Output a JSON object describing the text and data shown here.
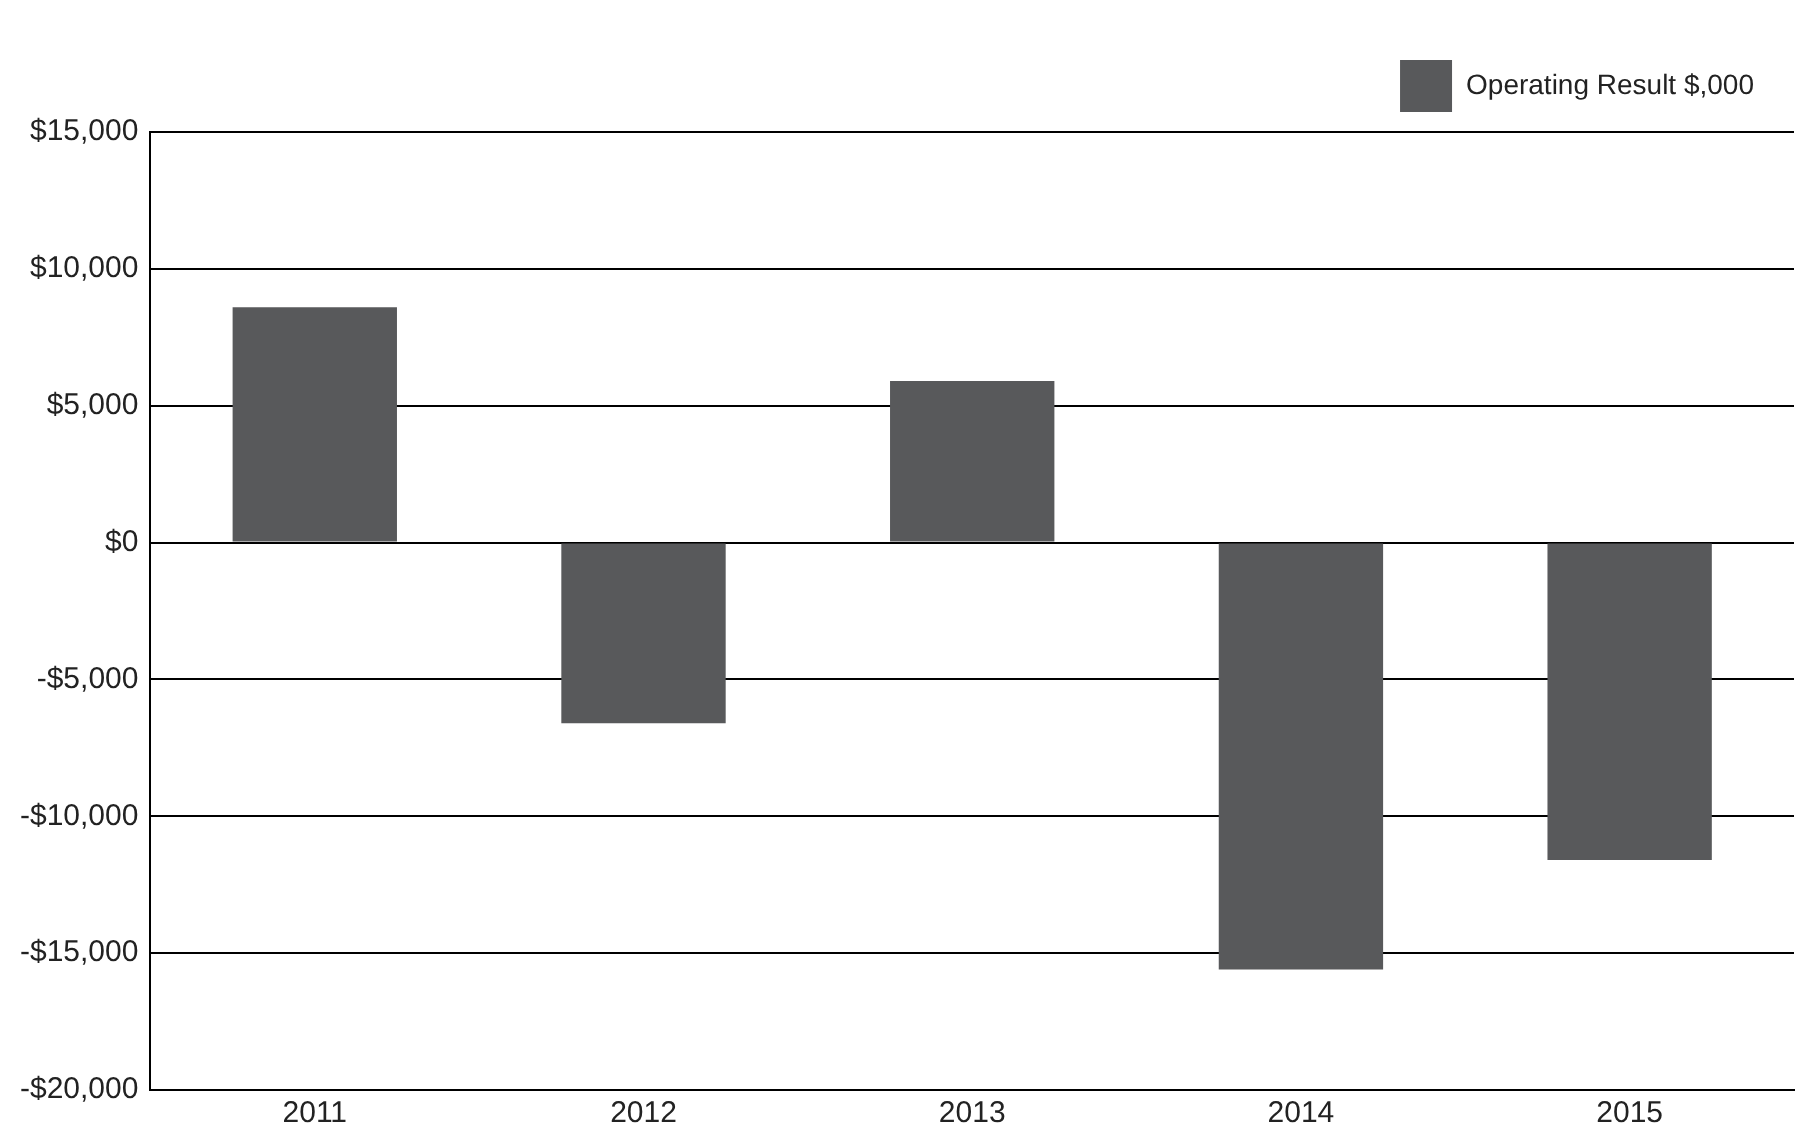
{
  "chart_data": {
    "type": "bar",
    "categories": [
      "2011",
      "2012",
      "2013",
      "2014",
      "2015"
    ],
    "series": [
      {
        "name": "Operating Result $,000",
        "color": "#58595b",
        "values": [
          8600,
          -6600,
          5900,
          -15600,
          -11600
        ]
      }
    ],
    "ylim": [
      -20000,
      15000
    ],
    "yticks": [
      {
        "value": -20000,
        "label": "-$20,000"
      },
      {
        "value": -15000,
        "label": "-$15,000"
      },
      {
        "value": -10000,
        "label": "-$10,000"
      },
      {
        "value": -5000,
        "label": "-$5,000"
      },
      {
        "value": 0,
        "label": "$0"
      },
      {
        "value": 5000,
        "label": "$5,000"
      },
      {
        "value": 10000,
        "label": "$10,000"
      },
      {
        "value": 15000,
        "label": "$15,000"
      }
    ],
    "grid": "y",
    "legend": "top right"
  }
}
